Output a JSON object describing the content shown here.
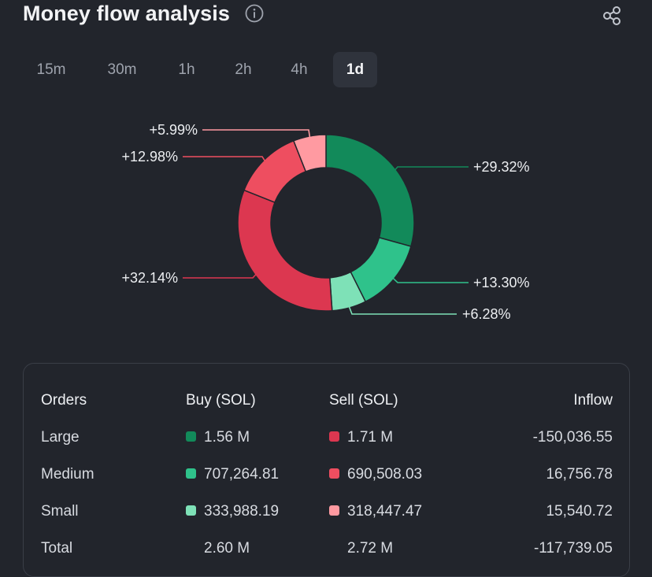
{
  "header": {
    "title": "Money flow analysis",
    "icons": {
      "info": "info-icon",
      "share": "share-icon"
    }
  },
  "tabs": [
    {
      "label": "15m",
      "active": false
    },
    {
      "label": "30m",
      "active": false
    },
    {
      "label": "1h",
      "active": false
    },
    {
      "label": "2h",
      "active": false
    },
    {
      "label": "4h",
      "active": false
    },
    {
      "label": "1d",
      "active": true
    }
  ],
  "chart_data": {
    "type": "pie",
    "donut": true,
    "slices": [
      {
        "label": "+29.32%",
        "value": 29.32,
        "color": "#128a5a"
      },
      {
        "label": "+13.30%",
        "value": 13.3,
        "color": "#2fc28b"
      },
      {
        "label": "+6.28%",
        "value": 6.28,
        "color": "#7ee1b7"
      },
      {
        "label": "+32.14%",
        "value": 32.14,
        "color": "#dc3750"
      },
      {
        "label": "+12.98%",
        "value": 12.98,
        "color": "#ee4e60"
      },
      {
        "label": "+5.99%",
        "value": 5.99,
        "color": "#ff9aa1"
      }
    ]
  },
  "table": {
    "headers": {
      "orders": "Orders",
      "buy": "Buy (SOL)",
      "sell": "Sell (SOL)",
      "inflow": "Inflow"
    },
    "rows": [
      {
        "label": "Large",
        "buy": "1.56 M",
        "buy_color": "#128a5a",
        "sell": "1.71 M",
        "sell_color": "#dc3750",
        "inflow": "-150,036.55"
      },
      {
        "label": "Medium",
        "buy": "707,264.81",
        "buy_color": "#2fc28b",
        "sell": "690,508.03",
        "sell_color": "#ee4e60",
        "inflow": "16,756.78"
      },
      {
        "label": "Small",
        "buy": "333,988.19",
        "buy_color": "#7ee1b7",
        "sell": "318,447.47",
        "sell_color": "#ff9aa1",
        "inflow": "15,540.72"
      },
      {
        "label": "Total",
        "buy": "2.60 M",
        "buy_color": "",
        "sell": "2.72 M",
        "sell_color": "",
        "inflow": "-117,739.05"
      }
    ]
  }
}
